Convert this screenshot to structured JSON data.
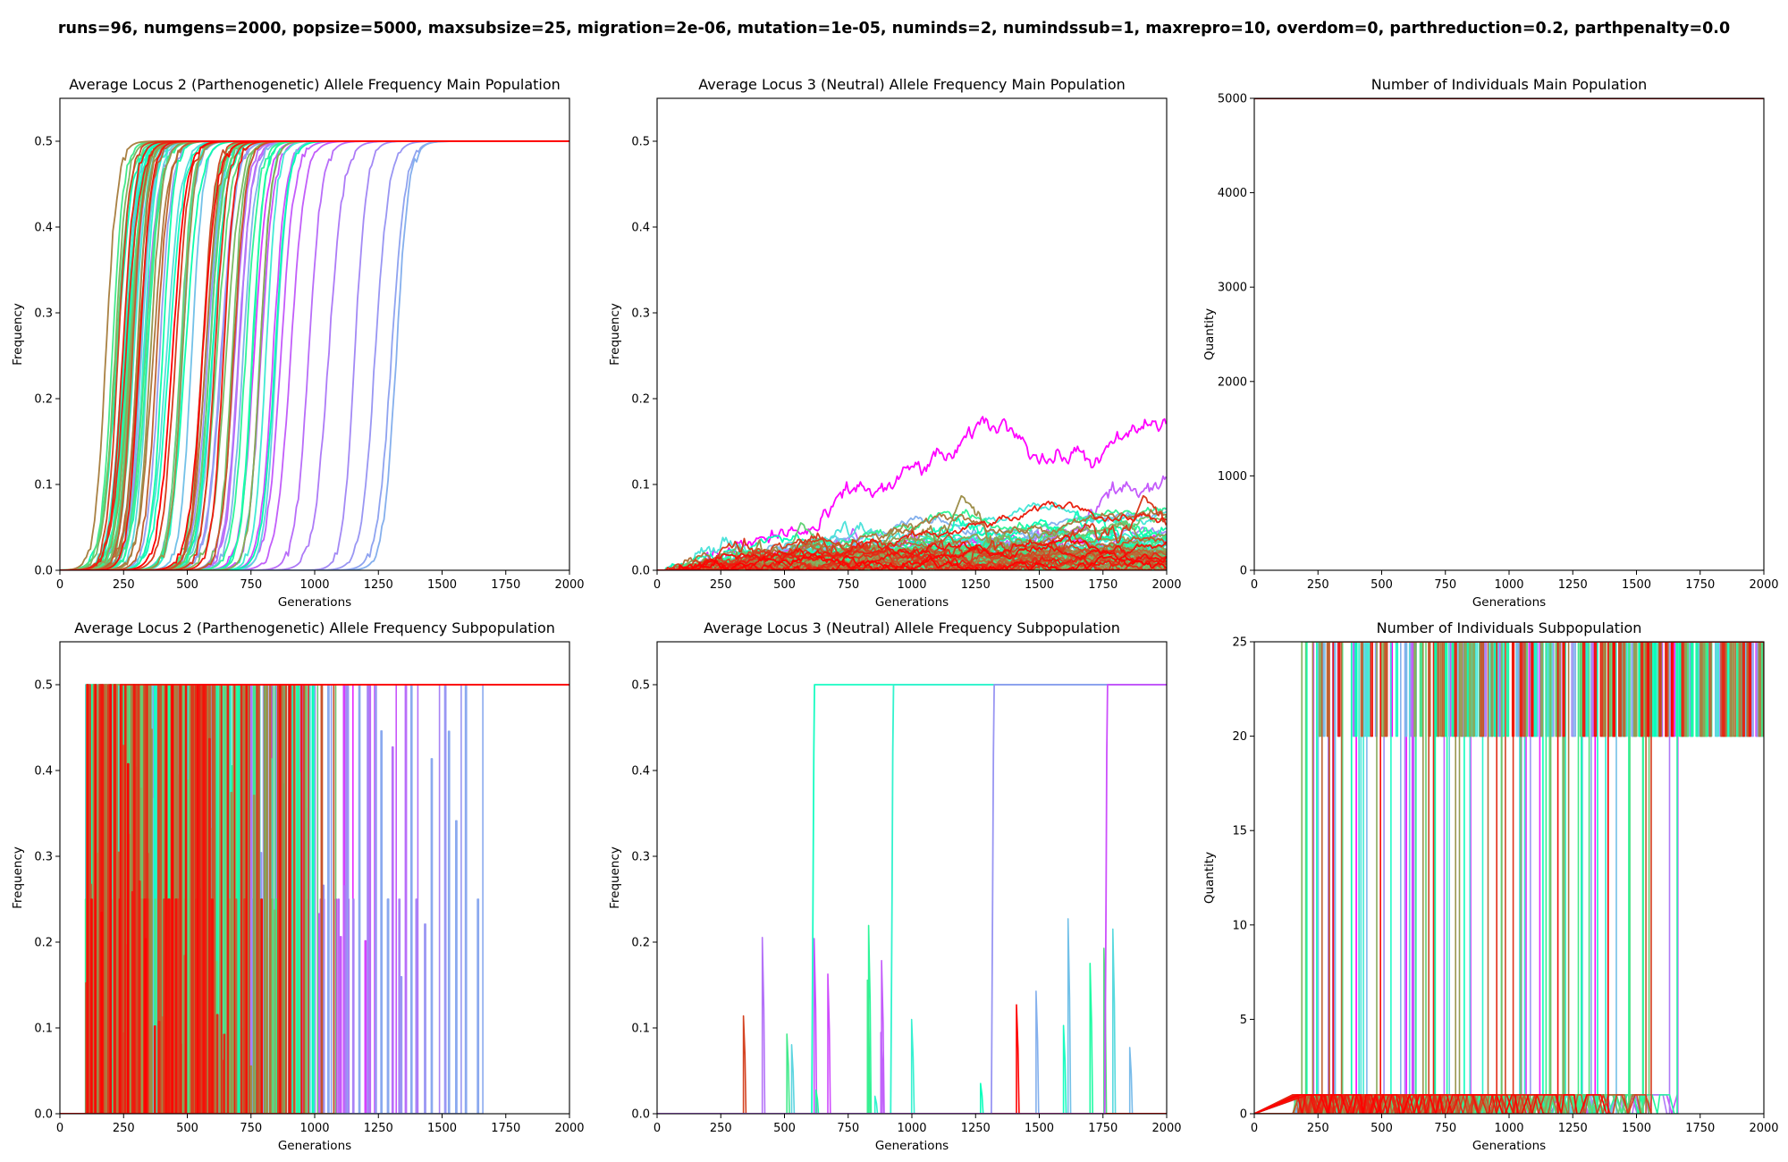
{
  "suptitle": "runs=96, numgens=2000, popsize=5000, maxsubsize=25, migration=2e-06, mutation=1e-05, numinds=2, numindssub=1, maxrepro=10, overdom=0, parthreduction=0.2, parthpenalty=0.0",
  "chart_data": [
    {
      "id": "main-locus2",
      "type": "line",
      "title": "Average Locus 2 (Parthenogenetic) Allele Frequency Main Population",
      "xlabel": "Generations",
      "ylabel": "Frequency",
      "xlim": [
        0,
        2000
      ],
      "ylim": [
        0,
        0.55
      ],
      "xticks": [
        0,
        250,
        500,
        750,
        1000,
        1250,
        1500,
        1750,
        2000
      ],
      "yticks": [
        0.0,
        0.1,
        0.2,
        0.3,
        0.4,
        0.5
      ],
      "ytick_format": "1",
      "run_count": 96,
      "colormap": "rainbow",
      "description_values": {
        "plateau_frequency": 0.5,
        "sweep_midpoints_approx": [
          160,
          1320
        ]
      }
    },
    {
      "id": "main-locus3",
      "type": "line",
      "title": "Average Locus 3 (Neutral) Allele Frequency Main Population",
      "xlabel": "Generations",
      "ylabel": "Frequency",
      "xlim": [
        0,
        2000
      ],
      "ylim": [
        0,
        0.55
      ],
      "xticks": [
        0,
        250,
        500,
        750,
        1000,
        1250,
        1500,
        1750,
        2000
      ],
      "yticks": [
        0.0,
        0.1,
        0.2,
        0.3,
        0.4,
        0.5
      ],
      "ytick_format": "1",
      "run_count": 96,
      "colormap": "rainbow",
      "description_values": {
        "max_frequency_approx": 0.19
      }
    },
    {
      "id": "main-count",
      "type": "line",
      "title": "Number of Individuals Main Population",
      "xlabel": "Generations",
      "ylabel": "Quantity",
      "xlim": [
        0,
        2000
      ],
      "ylim": [
        0,
        5000
      ],
      "xticks": [
        0,
        250,
        500,
        750,
        1000,
        1250,
        1500,
        1750,
        2000
      ],
      "yticks": [
        0,
        1000,
        2000,
        3000,
        4000,
        5000
      ],
      "ytick_format": "0",
      "run_count": 96,
      "colormap": "rainbow",
      "description_values": {
        "constant_value": 5000
      }
    },
    {
      "id": "sub-locus2",
      "type": "line",
      "title": "Average Locus 2 (Parthenogenetic) Allele Frequency Subpopulation",
      "xlabel": "Generations",
      "ylabel": "Frequency",
      "xlim": [
        0,
        2000
      ],
      "ylim": [
        0,
        0.55
      ],
      "xticks": [
        0,
        250,
        500,
        750,
        1000,
        1250,
        1500,
        1750,
        2000
      ],
      "yticks": [
        0.0,
        0.1,
        0.2,
        0.3,
        0.4,
        0.5
      ],
      "ytick_format": "1",
      "run_count": 96,
      "colormap": "rainbow",
      "description_values": {
        "plateau_frequency": 0.5,
        "fixation_start_approx": 190
      }
    },
    {
      "id": "sub-locus3",
      "type": "line",
      "title": "Average Locus 3 (Neutral) Allele Frequency Subpopulation",
      "xlabel": "Generations",
      "ylabel": "Frequency",
      "xlim": [
        0,
        2000
      ],
      "ylim": [
        0,
        0.55
      ],
      "xticks": [
        0,
        250,
        500,
        750,
        1000,
        1250,
        1500,
        1750,
        2000
      ],
      "yticks": [
        0.0,
        0.1,
        0.2,
        0.3,
        0.4,
        0.5
      ],
      "ytick_format": "1",
      "run_count": 96,
      "colormap": "rainbow",
      "description_values": {
        "fixation_steps_generations": [
          615,
          925,
          1320,
          1765
        ]
      }
    },
    {
      "id": "sub-count",
      "type": "line",
      "title": "Number of Individuals Subpopulation",
      "xlabel": "Generations",
      "ylabel": "Quantity",
      "xlim": [
        0,
        2000
      ],
      "ylim": [
        0,
        25
      ],
      "xticks": [
        0,
        250,
        500,
        750,
        1000,
        1250,
        1500,
        1750,
        2000
      ],
      "yticks": [
        0,
        5,
        10,
        15,
        20,
        25
      ],
      "ytick_format": "0",
      "run_count": 96,
      "colormap": "rainbow",
      "description_values": {
        "max_quantity": 25
      }
    }
  ]
}
